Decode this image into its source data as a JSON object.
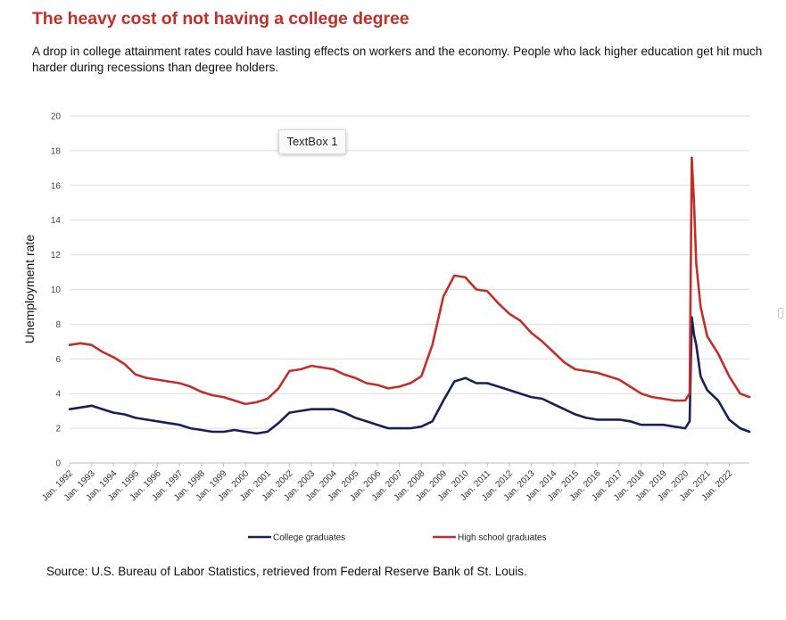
{
  "header": {
    "title": "The heavy cost of not having a college degree",
    "subtitle": "A drop in college attainment rates could have lasting effects on workers and the economy. People who lack higher education get hit much harder during recessions than degree holders."
  },
  "footer": {
    "source": "Source: U.S. Bureau of Labor Statistics, retrieved from Federal Reserve Bank of St. Louis."
  },
  "overlay": {
    "textbox_label": "TextBox 1"
  },
  "chart_data": {
    "type": "line",
    "ylabel": "Unemployment rate",
    "xlabel": "",
    "ylim": [
      0,
      20
    ],
    "yticks": [
      0,
      2,
      4,
      6,
      8,
      10,
      12,
      14,
      16,
      18,
      20
    ],
    "xlim": [
      1992.0,
      2022.92
    ],
    "xtick_labels": [
      "Jan. 1992",
      "Jan. 1993",
      "Jan. 1994",
      "Jan. 1995",
      "Jan. 1996",
      "Jan. 1997",
      "Jan. 1998",
      "Jan. 1999",
      "Jan. 2000",
      "Jan. 2001",
      "Jan. 2002",
      "Jan. 2003",
      "Jan. 2004",
      "Jan. 2005",
      "Jan. 2006",
      "Jan. 2007",
      "Jan. 2008",
      "Jan. 2009",
      "Jan. 2010",
      "Jan. 2011",
      "Jan. 2012",
      "Jan. 2013",
      "Jan. 2014",
      "Jan. 2015",
      "Jan. 2016",
      "Jan. 2017",
      "Jan. 2018",
      "Jan. 2019",
      "Jan. 2020",
      "Jan. 2021",
      "Jan. 2022"
    ],
    "grid": true,
    "legend_position": "bottom",
    "series": [
      {
        "name": "College graduates",
        "color": "#172058",
        "x": [
          1992.0,
          1992.5,
          1993.0,
          1993.5,
          1994.0,
          1994.5,
          1995.0,
          1995.5,
          1996.0,
          1996.5,
          1997.0,
          1997.5,
          1998.0,
          1998.5,
          1999.0,
          1999.5,
          2000.0,
          2000.5,
          2001.0,
          2001.5,
          2002.0,
          2002.5,
          2003.0,
          2003.5,
          2004.0,
          2004.5,
          2005.0,
          2005.5,
          2006.0,
          2006.5,
          2007.0,
          2007.5,
          2008.0,
          2008.5,
          2009.0,
          2009.5,
          2010.0,
          2010.5,
          2011.0,
          2011.5,
          2012.0,
          2012.5,
          2013.0,
          2013.5,
          2014.0,
          2014.5,
          2015.0,
          2015.5,
          2016.0,
          2016.5,
          2017.0,
          2017.5,
          2018.0,
          2018.5,
          2019.0,
          2019.5,
          2020.0,
          2020.2,
          2020.3,
          2020.4,
          2020.5,
          2020.7,
          2021.0,
          2021.5,
          2022.0,
          2022.5,
          2022.92
        ],
        "values": [
          3.1,
          3.2,
          3.3,
          3.1,
          2.9,
          2.8,
          2.6,
          2.5,
          2.4,
          2.3,
          2.2,
          2.0,
          1.9,
          1.8,
          1.8,
          1.9,
          1.8,
          1.7,
          1.8,
          2.3,
          2.9,
          3.0,
          3.1,
          3.1,
          3.1,
          2.9,
          2.6,
          2.4,
          2.2,
          2.0,
          2.0,
          2.0,
          2.1,
          2.4,
          3.6,
          4.7,
          4.9,
          4.6,
          4.6,
          4.4,
          4.2,
          4.0,
          3.8,
          3.7,
          3.4,
          3.1,
          2.8,
          2.6,
          2.5,
          2.5,
          2.5,
          2.4,
          2.2,
          2.2,
          2.2,
          2.1,
          2.0,
          2.4,
          8.4,
          7.4,
          6.8,
          5.0,
          4.2,
          3.6,
          2.5,
          2.0,
          1.8
        ]
      },
      {
        "name": "High school graduates",
        "color": "#c0302a",
        "x": [
          1992.0,
          1992.5,
          1993.0,
          1993.5,
          1994.0,
          1994.5,
          1995.0,
          1995.5,
          1996.0,
          1996.5,
          1997.0,
          1997.5,
          1998.0,
          1998.5,
          1999.0,
          1999.5,
          2000.0,
          2000.5,
          2001.0,
          2001.5,
          2002.0,
          2002.5,
          2003.0,
          2003.5,
          2004.0,
          2004.5,
          2005.0,
          2005.5,
          2006.0,
          2006.5,
          2007.0,
          2007.5,
          2008.0,
          2008.5,
          2009.0,
          2009.5,
          2010.0,
          2010.5,
          2011.0,
          2011.5,
          2012.0,
          2012.5,
          2013.0,
          2013.5,
          2014.0,
          2014.5,
          2015.0,
          2015.5,
          2016.0,
          2016.5,
          2017.0,
          2017.5,
          2018.0,
          2018.5,
          2019.0,
          2019.5,
          2020.0,
          2020.2,
          2020.3,
          2020.4,
          2020.5,
          2020.7,
          2021.0,
          2021.5,
          2022.0,
          2022.5,
          2022.92
        ],
        "values": [
          6.8,
          6.9,
          6.8,
          6.4,
          6.1,
          5.7,
          5.1,
          4.9,
          4.8,
          4.7,
          4.6,
          4.4,
          4.1,
          3.9,
          3.8,
          3.6,
          3.4,
          3.5,
          3.7,
          4.3,
          5.3,
          5.4,
          5.6,
          5.5,
          5.4,
          5.1,
          4.9,
          4.6,
          4.5,
          4.3,
          4.4,
          4.6,
          5.0,
          6.8,
          9.6,
          10.8,
          10.7,
          10.0,
          9.9,
          9.2,
          8.6,
          8.2,
          7.5,
          7.0,
          6.4,
          5.8,
          5.4,
          5.3,
          5.2,
          5.0,
          4.8,
          4.4,
          4.0,
          3.8,
          3.7,
          3.6,
          3.6,
          4.0,
          17.6,
          15.0,
          11.5,
          9.0,
          7.3,
          6.3,
          5.0,
          4.0,
          3.8
        ]
      }
    ]
  }
}
